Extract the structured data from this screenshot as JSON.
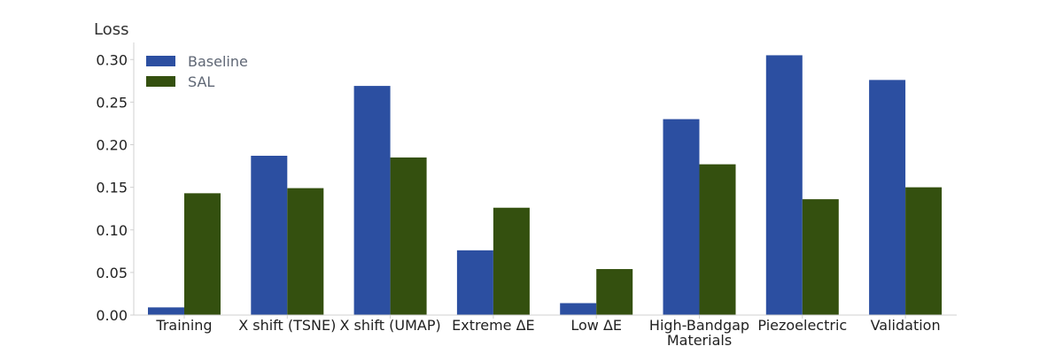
{
  "chart_data": {
    "type": "bar",
    "ylabel": "Loss",
    "ylim": [
      0,
      0.32
    ],
    "yticks": [
      "0.00",
      "0.05",
      "0.10",
      "0.15",
      "0.20",
      "0.25",
      "0.30"
    ],
    "categories": [
      [
        "Training"
      ],
      [
        "X shift (TSNE)"
      ],
      [
        "X shift (UMAP)"
      ],
      [
        "Extreme ΔE"
      ],
      [
        "Low ΔE"
      ],
      [
        "High-Bandgap",
        "Materials"
      ],
      [
        "Piezoelectric"
      ],
      [
        "Validation"
      ]
    ],
    "series": [
      {
        "name": "Baseline",
        "color": "#2c4fa1",
        "values": [
          0.009,
          0.187,
          0.269,
          0.076,
          0.014,
          0.23,
          0.305,
          0.276
        ]
      },
      {
        "name": "SAL",
        "color": "#34500f",
        "values": [
          0.143,
          0.149,
          0.185,
          0.126,
          0.054,
          0.177,
          0.136,
          0.15
        ]
      }
    ],
    "legend": {
      "location": "top-left"
    },
    "grid": false
  }
}
